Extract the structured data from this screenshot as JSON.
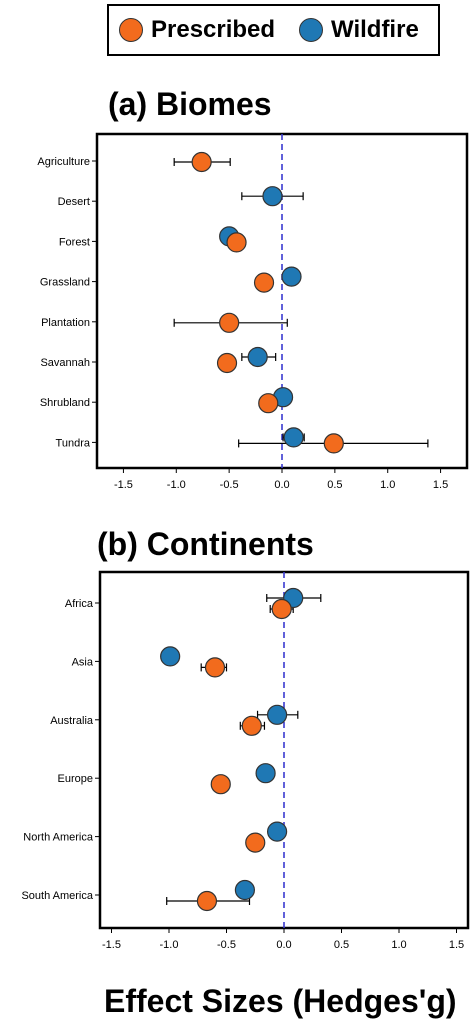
{
  "legend": {
    "items": [
      {
        "label": "Prescribed",
        "color": "#F26B1D"
      },
      {
        "label": "Wildfire",
        "color": "#1F78B4"
      }
    ]
  },
  "xlabel": "Effect Sizes (Hedges'g)",
  "chart_data": [
    {
      "type": "scatter",
      "title": "(a) Biomes",
      "categories": [
        "Agriculture",
        "Desert",
        "Forest",
        "Grassland",
        "Plantation",
        "Savannah",
        "Shrubland",
        "Tundra"
      ],
      "xlim": [
        -1.75,
        1.75
      ],
      "xticks": [
        "-1.5",
        "-1.0",
        "-0.5",
        "0.0",
        "0.5",
        "1.0",
        "1.5"
      ],
      "reference_line": 0,
      "series": [
        {
          "name": "Prescribed",
          "color": "#F26B1D",
          "values": [
            -0.76,
            null,
            -0.43,
            -0.17,
            -0.5,
            -0.52,
            -0.13,
            0.49
          ],
          "ci": [
            [
              -1.02,
              -0.49
            ],
            null,
            null,
            null,
            [
              -1.02,
              0.05
            ],
            null,
            null,
            [
              -0.41,
              1.38
            ]
          ]
        },
        {
          "name": "Wildfire",
          "color": "#1F78B4",
          "values": [
            null,
            -0.09,
            -0.5,
            0.09,
            null,
            -0.23,
            0.01,
            0.11
          ],
          "ci": [
            null,
            [
              -0.38,
              0.2
            ],
            null,
            null,
            null,
            [
              -0.38,
              -0.06
            ],
            null,
            [
              0.01,
              0.21
            ]
          ]
        }
      ]
    },
    {
      "type": "scatter",
      "title": "(b) Continents",
      "categories": [
        "Africa",
        "Asia",
        "Australia",
        "Europe",
        "North America",
        "South America"
      ],
      "xlim": [
        -1.6,
        1.6
      ],
      "xticks": [
        "-1.5",
        "-1.0",
        "-0.5",
        "0.0",
        "0.5",
        "1.0",
        "1.5"
      ],
      "reference_line": 0,
      "series": [
        {
          "name": "Prescribed",
          "color": "#F26B1D",
          "values": [
            -0.02,
            -0.6,
            -0.28,
            -0.55,
            -0.25,
            -0.67
          ],
          "ci": [
            [
              -0.12,
              0.08
            ],
            [
              -0.72,
              -0.5
            ],
            [
              -0.38,
              -0.17
            ],
            null,
            null,
            [
              -1.02,
              -0.3
            ]
          ]
        },
        {
          "name": "Wildfire",
          "color": "#1F78B4",
          "values": [
            0.08,
            -0.99,
            -0.06,
            -0.16,
            -0.06,
            -0.34
          ],
          "ci": [
            [
              -0.15,
              0.32
            ],
            null,
            [
              -0.23,
              0.12
            ],
            null,
            null,
            null
          ]
        }
      ]
    }
  ]
}
